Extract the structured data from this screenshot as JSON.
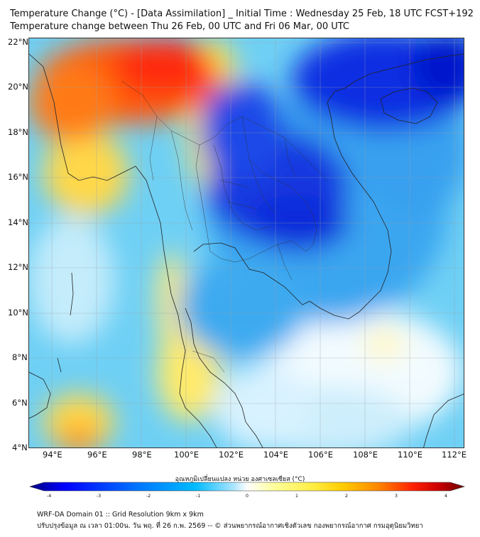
{
  "header": {
    "title_line1": "Temperature Change (°C) - [Data Assimilation] _ Initial Time : Wednesday 25 Feb, 18 UTC FCST+192",
    "title_line2": "Temperature change between Thu 26 Feb, 00 UTC and Fri 06 Mar, 00 UTC"
  },
  "map": {
    "lat_labels": [
      "22°N",
      "20°N",
      "18°N",
      "16°N",
      "14°N",
      "12°N",
      "10°N",
      "8°N",
      "6°N",
      "4°N"
    ],
    "lon_labels": [
      "94°E",
      "96°E",
      "98°E",
      "100°E",
      "102°E",
      "104°E",
      "106°E",
      "108°E",
      "110°E",
      "112°E"
    ],
    "extent": {
      "lon_min": 93,
      "lon_max": 113,
      "lat_min": 4,
      "lat_max": 22
    }
  },
  "colorbar": {
    "title": "อุณหภูมิเปลี่ยนแปลง หน่วย องศาเซลเซียส (°C)",
    "ticks": [
      "-4",
      "-3",
      "-2",
      "-1",
      "0",
      "1",
      "2",
      "3",
      "4"
    ],
    "colors": [
      "#000080",
      "#0000ff",
      "#0077ff",
      "#00bbff",
      "#aee6ff",
      "#ffffff",
      "#ffffa0",
      "#ffee44",
      "#ffcc00",
      "#ff8800",
      "#ff2200",
      "#cc0000",
      "#6b0000"
    ]
  },
  "footer": {
    "line1": "WRF-DA Domain 01 :: Grid Resolution 9km x 9km",
    "line2": "ปรับปรุงข้อมูล ณ เวลา 01:00น. วัน พฤ. ที่ 26 ก.พ. 2569 -- © ส่วนพยากรณ์อากาศเชิงตัวเลข กองพยากรณ์อากาศ กรมอุตุนิยมวิทยา"
  }
}
